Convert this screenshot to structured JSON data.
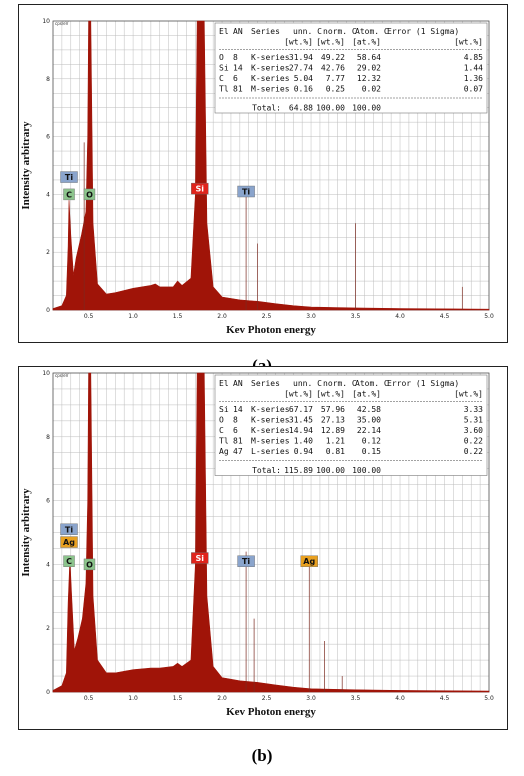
{
  "captions": [
    "(a)",
    "(b)"
  ],
  "colors": {
    "spectrum": "#a01408",
    "grid": "#bcbcbc",
    "ti_label": "#8aa4cc",
    "c_label": "#8cc48c",
    "o_label": "#8cc48c",
    "si_label": "#e0241c",
    "ag_label": "#e8a020"
  },
  "chart_data": [
    {
      "type": "area",
      "panel": "a",
      "xlabel": "Kev Photon energy",
      "ylabel": "Intensity arbitrary",
      "unit_label": "cps/eV",
      "xlim": [
        0.1,
        5.0
      ],
      "ylim": [
        0,
        10
      ],
      "xticks": [
        "0.5",
        "1.0",
        "1.5",
        "2.0",
        "2.5",
        "3.0",
        "3.5",
        "4.0",
        "4.5",
        "5.0"
      ],
      "yticks": [
        "0",
        "2",
        "4",
        "6",
        "8",
        "10"
      ],
      "grid": true,
      "spectrum": [
        [
          0.1,
          0.05
        ],
        [
          0.2,
          0.15
        ],
        [
          0.25,
          0.5
        ],
        [
          0.27,
          2.2
        ],
        [
          0.28,
          3.8
        ],
        [
          0.3,
          2.6
        ],
        [
          0.33,
          1.2
        ],
        [
          0.36,
          1.8
        ],
        [
          0.42,
          2.6
        ],
        [
          0.47,
          3.4
        ],
        [
          0.49,
          6
        ],
        [
          0.5,
          10
        ],
        [
          0.525,
          10
        ],
        [
          0.55,
          3
        ],
        [
          0.6,
          0.9
        ],
        [
          0.7,
          0.55
        ],
        [
          0.8,
          0.6
        ],
        [
          1.0,
          0.75
        ],
        [
          1.2,
          0.85
        ],
        [
          1.25,
          0.9
        ],
        [
          1.3,
          0.8
        ],
        [
          1.45,
          0.8
        ],
        [
          1.5,
          1.0
        ],
        [
          1.55,
          0.85
        ],
        [
          1.65,
          1.1
        ],
        [
          1.7,
          4
        ],
        [
          1.72,
          10
        ],
        [
          1.8,
          10
        ],
        [
          1.83,
          3
        ],
        [
          1.9,
          0.8
        ],
        [
          2.0,
          0.45
        ],
        [
          2.2,
          0.35
        ],
        [
          2.4,
          0.3
        ],
        [
          2.6,
          0.22
        ],
        [
          2.8,
          0.15
        ],
        [
          3.0,
          0.1
        ],
        [
          3.5,
          0.07
        ],
        [
          4.0,
          0.05
        ],
        [
          5.0,
          0.03
        ]
      ],
      "lines": [
        [
          0.45,
          5.8
        ],
        [
          2.27,
          4.0
        ],
        [
          2.4,
          2.3
        ],
        [
          4.7,
          0.8
        ],
        [
          3.5,
          3.0
        ]
      ],
      "peak_labels": [
        {
          "text": "Ti",
          "x": 0.28,
          "y": 4.6,
          "color_key": "ti_label"
        },
        {
          "text": "C",
          "x": 0.28,
          "y": 4.0,
          "color_key": "c_label"
        },
        {
          "text": "O",
          "x": 0.51,
          "y": 4.0,
          "color_key": "o_label"
        },
        {
          "text": "Si",
          "x": 1.75,
          "y": 4.2,
          "color_key": "si_label"
        },
        {
          "text": "Ti",
          "x": 2.27,
          "y": 4.1,
          "color_key": "ti_label"
        }
      ],
      "table": {
        "header1": [
          "El",
          "AN",
          "Series",
          "unn. C",
          "norm. C",
          "Atom. C",
          "Error (1 Sigma)"
        ],
        "header2": [
          "",
          "",
          "",
          "[wt.%]",
          "[wt.%]",
          "[at.%]",
          "[wt.%]"
        ],
        "rows": [
          [
            "O",
            "8",
            "K-series",
            "31.94",
            "49.22",
            "58.64",
            "4.85"
          ],
          [
            "Si",
            "14",
            "K-series",
            "27.74",
            "42.76",
            "29.02",
            "1.44"
          ],
          [
            "C",
            "6",
            "K-series",
            "5.04",
            "7.77",
            "12.32",
            "1.36"
          ],
          [
            "Tl",
            "81",
            "M-series",
            "0.16",
            "0.25",
            "0.02",
            "0.07"
          ]
        ],
        "total": [
          "Total:",
          "64.88",
          "100.00",
          "100.00"
        ]
      }
    },
    {
      "type": "area",
      "panel": "b",
      "xlabel": "Kev Photon energy",
      "ylabel": "Intensity arbitrary",
      "unit_label": "cps/eV",
      "xlim": [
        0.1,
        5.0
      ],
      "ylim": [
        0,
        10
      ],
      "xticks": [
        "0.5",
        "1.0",
        "1.5",
        "2.0",
        "2.5",
        "3.0",
        "3.5",
        "4.0",
        "4.5",
        "5.0"
      ],
      "yticks": [
        "0",
        "2",
        "4",
        "6",
        "8",
        "10"
      ],
      "grid": true,
      "spectrum": [
        [
          0.1,
          0.05
        ],
        [
          0.2,
          0.2
        ],
        [
          0.25,
          0.6
        ],
        [
          0.27,
          2.8
        ],
        [
          0.29,
          4.2
        ],
        [
          0.31,
          3.0
        ],
        [
          0.34,
          1.3
        ],
        [
          0.38,
          1.7
        ],
        [
          0.43,
          2.3
        ],
        [
          0.47,
          3.4
        ],
        [
          0.49,
          6
        ],
        [
          0.5,
          10
        ],
        [
          0.525,
          10
        ],
        [
          0.55,
          3
        ],
        [
          0.6,
          1.0
        ],
        [
          0.7,
          0.6
        ],
        [
          0.8,
          0.6
        ],
        [
          1.0,
          0.7
        ],
        [
          1.2,
          0.75
        ],
        [
          1.3,
          0.75
        ],
        [
          1.45,
          0.8
        ],
        [
          1.5,
          0.9
        ],
        [
          1.55,
          0.8
        ],
        [
          1.65,
          1.0
        ],
        [
          1.7,
          4
        ],
        [
          1.72,
          10
        ],
        [
          1.8,
          10
        ],
        [
          1.83,
          3
        ],
        [
          1.9,
          0.8
        ],
        [
          2.0,
          0.45
        ],
        [
          2.2,
          0.35
        ],
        [
          2.4,
          0.3
        ],
        [
          2.6,
          0.22
        ],
        [
          2.8,
          0.15
        ],
        [
          3.0,
          0.1
        ],
        [
          3.5,
          0.07
        ],
        [
          4.0,
          0.05
        ],
        [
          5.0,
          0.03
        ]
      ],
      "lines": [
        [
          2.27,
          4.4
        ],
        [
          2.36,
          2.3
        ],
        [
          2.98,
          4.0
        ],
        [
          3.15,
          1.6
        ],
        [
          3.35,
          0.5
        ]
      ],
      "peak_labels": [
        {
          "text": "Ti",
          "x": 0.28,
          "y": 5.1,
          "color_key": "ti_label"
        },
        {
          "text": "Ag",
          "x": 0.28,
          "y": 4.7,
          "color_key": "ag_label"
        },
        {
          "text": "C",
          "x": 0.28,
          "y": 4.1,
          "color_key": "c_label"
        },
        {
          "text": "O",
          "x": 0.51,
          "y": 4.0,
          "color_key": "o_label"
        },
        {
          "text": "Si",
          "x": 1.75,
          "y": 4.2,
          "color_key": "si_label"
        },
        {
          "text": "Ti",
          "x": 2.27,
          "y": 4.1,
          "color_key": "ti_label"
        },
        {
          "text": "Ag",
          "x": 2.98,
          "y": 4.1,
          "color_key": "ag_label"
        }
      ],
      "table": {
        "header1": [
          "El",
          "AN",
          "Series",
          "unn. C",
          "norm. C",
          "Atom. C",
          "Error (1 Sigma)"
        ],
        "header2": [
          "",
          "",
          "",
          "[wt.%]",
          "[wt.%]",
          "[at.%]",
          "[wt.%]"
        ],
        "rows": [
          [
            "Si",
            "14",
            "K-series",
            "67.17",
            "57.96",
            "42.58",
            "3.33"
          ],
          [
            "O",
            "8",
            "K-series",
            "31.45",
            "27.13",
            "35.00",
            "5.31"
          ],
          [
            "C",
            "6",
            "K-series",
            "14.94",
            "12.89",
            "22.14",
            "3.60"
          ],
          [
            "Tl",
            "81",
            "M-series",
            "1.40",
            "1.21",
            "0.12",
            "0.22"
          ],
          [
            "Ag",
            "47",
            "L-series",
            "0.94",
            "0.81",
            "0.15",
            "0.22"
          ]
        ],
        "total": [
          "Total:",
          "115.89",
          "100.00",
          "100.00"
        ]
      }
    }
  ]
}
